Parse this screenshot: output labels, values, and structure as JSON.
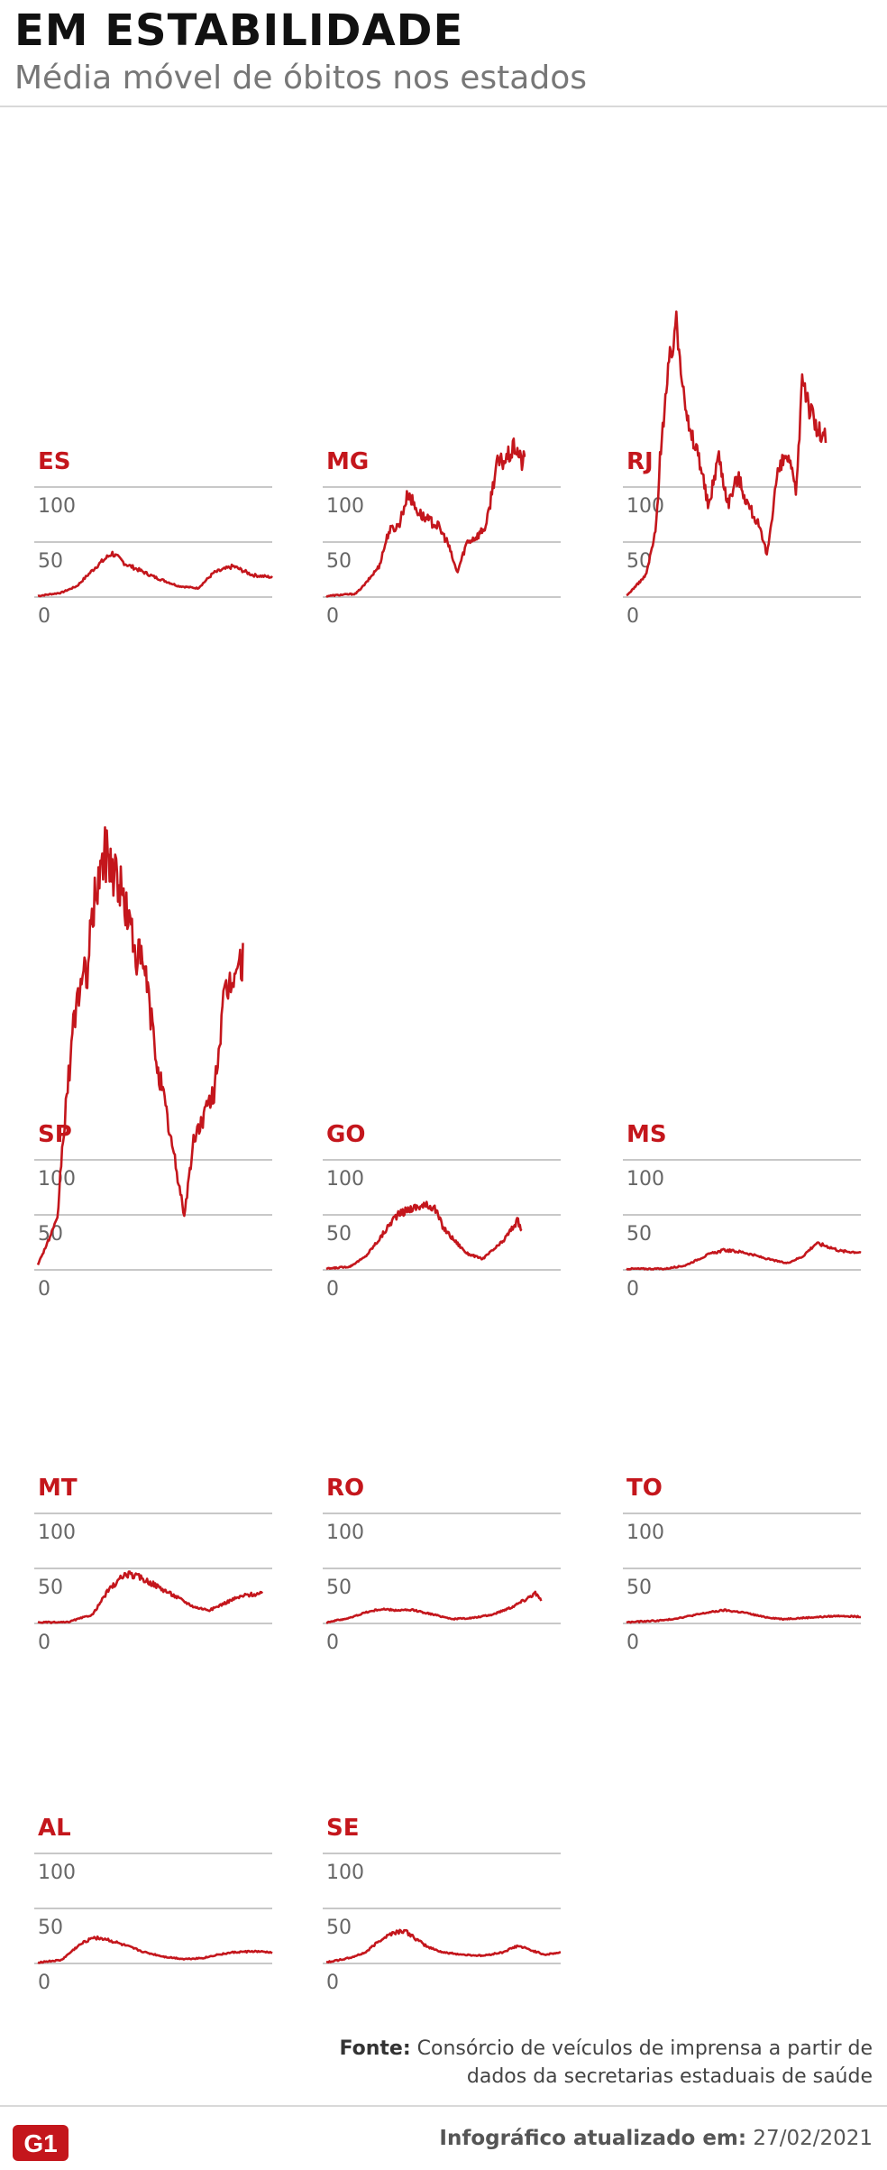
{
  "header": {
    "title": "EM ESTABILIDADE",
    "subtitle": "Média móvel de óbitos nos estados"
  },
  "footer": {
    "source_label": "Fonte:",
    "source_text": "Consórcio de veículos de imprensa a partir de dados da secretarias estaduais de saúde",
    "updated_label": "Infográfico atualizado em:",
    "updated_date": "27/02/2021",
    "logo_text": "G1"
  },
  "colors": {
    "line": "#c4161c",
    "label": "#c4161c",
    "grid": "#c8c8c8",
    "tick": "#666666"
  },
  "chart_data": [
    {
      "type": "line",
      "state": "ES",
      "ylim": [
        0,
        100
      ],
      "yticks": [
        0,
        50,
        100
      ],
      "anchors": [
        0,
        1,
        0.12,
        4,
        0.2,
        10,
        0.3,
        28,
        0.38,
        40,
        0.45,
        30,
        0.6,
        18,
        0.72,
        10,
        0.82,
        8,
        0.9,
        22,
        1.0,
        28,
        1.1,
        20,
        1.2,
        18
      ]
    },
    {
      "type": "line",
      "state": "MG",
      "ylim": [
        0,
        100
      ],
      "yticks": [
        0,
        50,
        100
      ],
      "anchors": [
        0,
        1,
        0.15,
        3,
        0.2,
        12,
        0.27,
        28,
        0.32,
        60,
        0.37,
        65,
        0.42,
        95,
        0.46,
        80,
        0.5,
        72,
        0.57,
        65,
        0.62,
        50,
        0.67,
        22,
        0.72,
        50,
        0.77,
        55,
        0.82,
        65,
        0.87,
        120,
        0.92,
        125,
        0.97,
        137,
        1.0,
        122,
        1.02,
        127
      ]
    },
    {
      "type": "line",
      "state": "RJ",
      "ylim": [
        0,
        100
      ],
      "yticks": [
        0,
        50,
        100
      ],
      "anchors": [
        0,
        1,
        0.1,
        20,
        0.15,
        60,
        0.18,
        150,
        0.22,
        210,
        0.25,
        250,
        0.29,
        200,
        0.32,
        150,
        0.37,
        130,
        0.42,
        80,
        0.47,
        130,
        0.52,
        85,
        0.57,
        110,
        0.62,
        85,
        0.67,
        68,
        0.72,
        38,
        0.77,
        110,
        0.82,
        130,
        0.87,
        95,
        0.9,
        205,
        0.94,
        170,
        0.98,
        150,
        1.02,
        145
      ]
    },
    {
      "type": "line",
      "state": "SP",
      "ylim": [
        0,
        100
      ],
      "yticks": [
        0,
        50,
        100
      ],
      "anchors": [
        0,
        5,
        0.1,
        45,
        0.12,
        100,
        0.16,
        180,
        0.2,
        250,
        0.25,
        270,
        0.3,
        350,
        0.35,
        380,
        0.4,
        360,
        0.45,
        330,
        0.5,
        290,
        0.55,
        270,
        0.6,
        200,
        0.65,
        150,
        0.7,
        100,
        0.75,
        50,
        0.8,
        120,
        0.85,
        140,
        0.9,
        160,
        0.95,
        240,
        1.0,
        270,
        1.05,
        280
      ]
    },
    {
      "type": "line",
      "state": "GO",
      "ylim": [
        0,
        100
      ],
      "yticks": [
        0,
        50,
        100
      ],
      "anchors": [
        0,
        1,
        0.12,
        3,
        0.2,
        12,
        0.28,
        30,
        0.35,
        48,
        0.42,
        55,
        0.48,
        58,
        0.55,
        58,
        0.6,
        38,
        0.65,
        28,
        0.72,
        15,
        0.8,
        10,
        0.9,
        25,
        0.98,
        45,
        1.0,
        35
      ]
    },
    {
      "type": "line",
      "state": "MS",
      "ylim": [
        0,
        100
      ],
      "yticks": [
        0,
        50,
        100
      ],
      "anchors": [
        0,
        1,
        0.2,
        1,
        0.3,
        4,
        0.42,
        14,
        0.5,
        18,
        0.6,
        16,
        0.72,
        10,
        0.82,
        6,
        0.9,
        12,
        0.97,
        24,
        1.02,
        22,
        1.1,
        17,
        1.2,
        16
      ]
    },
    {
      "type": "line",
      "state": "MT",
      "ylim": [
        0,
        100
      ],
      "yticks": [
        0,
        50,
        100
      ],
      "anchors": [
        0,
        1,
        0.15,
        1,
        0.28,
        8,
        0.36,
        30,
        0.45,
        45,
        0.52,
        42,
        0.6,
        35,
        0.7,
        25,
        0.8,
        15,
        0.88,
        12,
        0.95,
        18,
        1.0,
        22,
        1.07,
        26,
        1.15,
        27
      ]
    },
    {
      "type": "line",
      "state": "RO",
      "ylim": [
        0,
        100
      ],
      "yticks": [
        0,
        50,
        100
      ],
      "anchors": [
        0,
        1,
        0.12,
        5,
        0.2,
        10,
        0.28,
        13,
        0.35,
        12,
        0.45,
        12,
        0.55,
        8,
        0.65,
        4,
        0.75,
        5,
        0.85,
        8,
        0.95,
        15,
        1.02,
        22,
        1.07,
        28,
        1.1,
        20
      ]
    },
    {
      "type": "line",
      "state": "TO",
      "ylim": [
        0,
        100
      ],
      "yticks": [
        0,
        50,
        100
      ],
      "anchors": [
        0,
        1,
        0.2,
        3,
        0.3,
        6,
        0.42,
        10,
        0.5,
        12,
        0.6,
        10,
        0.7,
        6,
        0.8,
        4,
        0.9,
        5,
        1.0,
        6,
        1.1,
        7,
        1.2,
        6
      ]
    },
    {
      "type": "line",
      "state": "AL",
      "ylim": [
        0,
        100
      ],
      "yticks": [
        0,
        50,
        100
      ],
      "anchors": [
        0,
        1,
        0.12,
        3,
        0.2,
        15,
        0.28,
        24,
        0.35,
        22,
        0.45,
        16,
        0.55,
        10,
        0.65,
        6,
        0.75,
        4,
        0.85,
        5,
        0.92,
        8,
        1.0,
        10,
        1.1,
        11,
        1.2,
        10
      ]
    },
    {
      "type": "line",
      "state": "SE",
      "ylim": [
        0,
        100
      ],
      "yticks": [
        0,
        50,
        100
      ],
      "anchors": [
        0,
        1,
        0.12,
        5,
        0.2,
        10,
        0.28,
        22,
        0.34,
        28,
        0.4,
        30,
        0.46,
        22,
        0.52,
        15,
        0.6,
        10,
        0.7,
        8,
        0.8,
        7,
        0.9,
        10,
        0.98,
        16,
        1.05,
        12,
        1.12,
        8,
        1.2,
        10
      ]
    }
  ]
}
